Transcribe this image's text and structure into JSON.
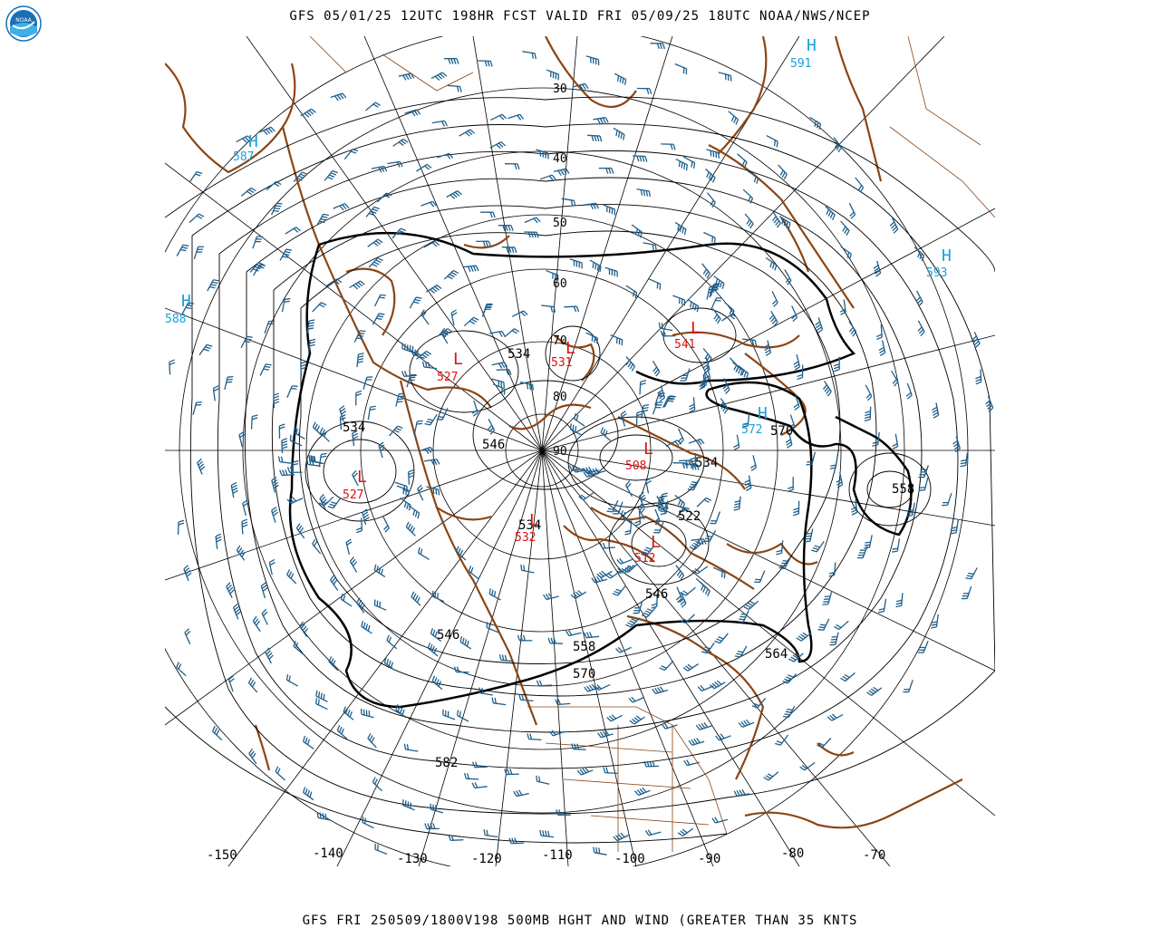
{
  "header": {
    "title": "GFS 05/01/25 12UTC 198HR FCST VALID FRI 05/09/25 18UTC NOAA/NWS/NCEP",
    "logo_text": "NOAA"
  },
  "footer": {
    "title": "GFS FRI 250509/1800V198 500MB HGHT AND WIND (GREATER THAN 35 KNTS"
  },
  "colors": {
    "coast": "#8b4513",
    "barb": "#1f5f8b",
    "high": "#1aa0d8",
    "low": "#e01010",
    "contour": "#000000",
    "grid": "#000000"
  },
  "latitude_labels": [
    "30",
    "40",
    "50",
    "60",
    "70",
    "80",
    "90"
  ],
  "longitude_labels": [
    "-150",
    "-140",
    "-130",
    "-120",
    "-110",
    "-100",
    "-90",
    "-80",
    "-70"
  ],
  "highs": [
    {
      "letter": "H",
      "value": "591"
    },
    {
      "letter": "H",
      "value": "587"
    },
    {
      "letter": "H",
      "value": "593"
    },
    {
      "letter": "H",
      "value": "588"
    },
    {
      "letter": "H",
      "value": "572"
    }
  ],
  "lows": [
    {
      "letter": "L",
      "value": "527"
    },
    {
      "letter": "L",
      "value": "531"
    },
    {
      "letter": "L",
      "value": "541"
    },
    {
      "letter": "L",
      "value": "508"
    },
    {
      "letter": "L",
      "value": "527"
    },
    {
      "letter": "L",
      "value": "532"
    },
    {
      "letter": "L",
      "value": "512"
    }
  ],
  "contour_labels": [
    "534",
    "534",
    "546",
    "534",
    "570",
    "558",
    "522",
    "534",
    "546",
    "546",
    "558",
    "570",
    "564",
    "582"
  ]
}
